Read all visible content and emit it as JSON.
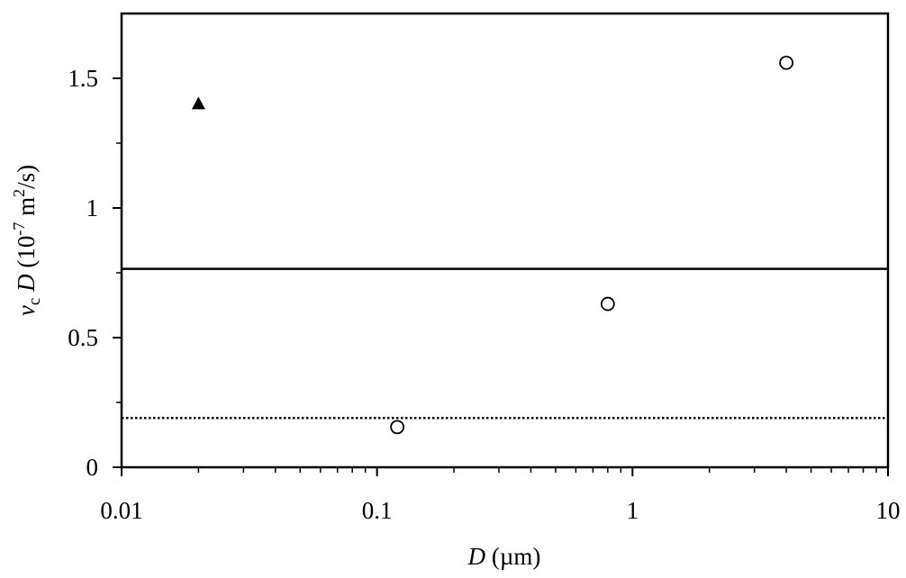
{
  "chart_data": {
    "type": "scatter",
    "x_scale": "log",
    "xlim": [
      0.01,
      10
    ],
    "ylim": [
      0,
      1.75
    ],
    "x_ticks": [
      {
        "value": 0.01,
        "label": "0.01"
      },
      {
        "value": 0.1,
        "label": "0.1"
      },
      {
        "value": 1,
        "label": "1"
      },
      {
        "value": 10,
        "label": "10"
      }
    ],
    "y_ticks": [
      {
        "value": 0,
        "label": "0"
      },
      {
        "value": 0.5,
        "label": "0.5"
      },
      {
        "value": 1,
        "label": "1"
      },
      {
        "value": 1.5,
        "label": "1.5"
      }
    ],
    "xlabel": {
      "var": "D",
      "unit": " (µm)"
    },
    "ylabel": {
      "var1": "v",
      "sub": "c",
      "var2": "D",
      "pre": " (10",
      "exp1": "-7",
      "mid": " m",
      "exp2": "2",
      "post": "/s)"
    },
    "series": [
      {
        "marker": "filled-triangle",
        "points": [
          {
            "x": 0.02,
            "y": 1.4
          }
        ]
      },
      {
        "marker": "open-circle",
        "points": [
          {
            "x": 0.12,
            "y": 0.155
          },
          {
            "x": 0.8,
            "y": 0.63
          },
          {
            "x": 4.0,
            "y": 1.56
          }
        ]
      }
    ],
    "reference_lines": [
      {
        "style": "solid",
        "y": 0.765
      },
      {
        "style": "dotted",
        "y": 0.19
      }
    ],
    "grid": false,
    "legend": "none",
    "colors": {
      "ink": "#000000",
      "background": "#ffffff"
    }
  }
}
